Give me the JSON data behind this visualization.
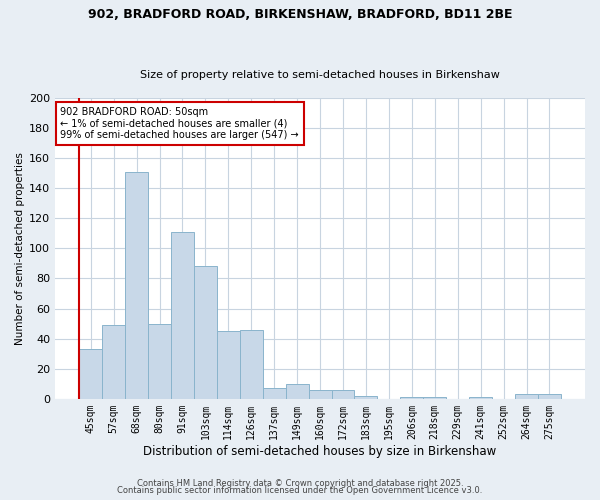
{
  "title1": "902, BRADFORD ROAD, BIRKENSHAW, BRADFORD, BD11 2BE",
  "title2": "Size of property relative to semi-detached houses in Birkenshaw",
  "xlabel": "Distribution of semi-detached houses by size in Birkenshaw",
  "ylabel": "Number of semi-detached properties",
  "categories": [
    "45sqm",
    "57sqm",
    "68sqm",
    "80sqm",
    "91sqm",
    "103sqm",
    "114sqm",
    "126sqm",
    "137sqm",
    "149sqm",
    "160sqm",
    "172sqm",
    "183sqm",
    "195sqm",
    "206sqm",
    "218sqm",
    "229sqm",
    "241sqm",
    "252sqm",
    "264sqm",
    "275sqm"
  ],
  "values": [
    33,
    49,
    151,
    50,
    111,
    88,
    45,
    46,
    7,
    10,
    6,
    6,
    2,
    0,
    1,
    1,
    0,
    1,
    0,
    3,
    3
  ],
  "bar_color": "#c8d8e8",
  "bar_edge_color": "#8ab4cc",
  "highlight_color": "#cc0000",
  "annotation_line1": "902 BRADFORD ROAD: 50sqm",
  "annotation_line2": "← 1% of semi-detached houses are smaller (4)",
  "annotation_line3": "99% of semi-detached houses are larger (547) →",
  "annotation_box_color": "#ffffff",
  "annotation_box_edge": "#cc0000",
  "footer1": "Contains HM Land Registry data © Crown copyright and database right 2025.",
  "footer2": "Contains public sector information licensed under the Open Government Licence v3.0.",
  "bg_color": "#e8eef4",
  "plot_bg_color": "#ffffff",
  "grid_color": "#c8d4e0",
  "ylim": [
    0,
    200
  ],
  "yticks": [
    0,
    20,
    40,
    60,
    80,
    100,
    120,
    140,
    160,
    180,
    200
  ]
}
